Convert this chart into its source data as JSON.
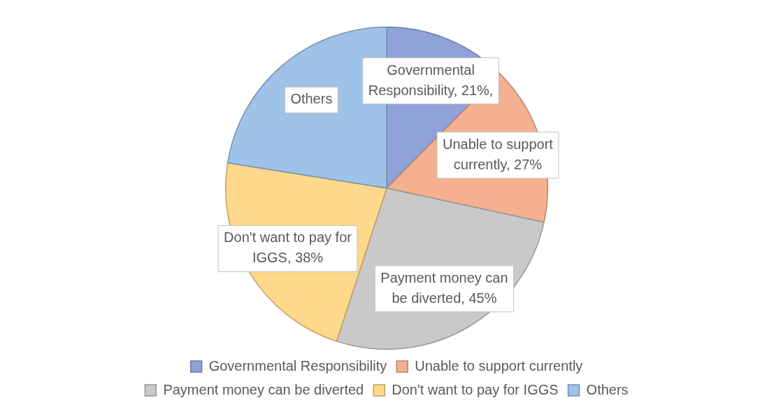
{
  "chart_data": {
    "type": "pie",
    "categories": [
      "Governmental Responsibility",
      "Unable to support currently",
      "Payment money can be diverted",
      "Don't want to pay for IGGS",
      "Others"
    ],
    "values": [
      21,
      27,
      45,
      38,
      38
    ],
    "value_labels": [
      "Governmental Responsibility, 21%,",
      "Unable to support currently, 27%",
      "Payment money can be diverted, 45%",
      "Don't want to pay for IGGS, 38%",
      "Others"
    ],
    "colors": [
      "#8fa2d9",
      "#f4b08f",
      "#c9c9c9",
      "#fed88b",
      "#9fc3e8"
    ],
    "legend": "bottom"
  }
}
